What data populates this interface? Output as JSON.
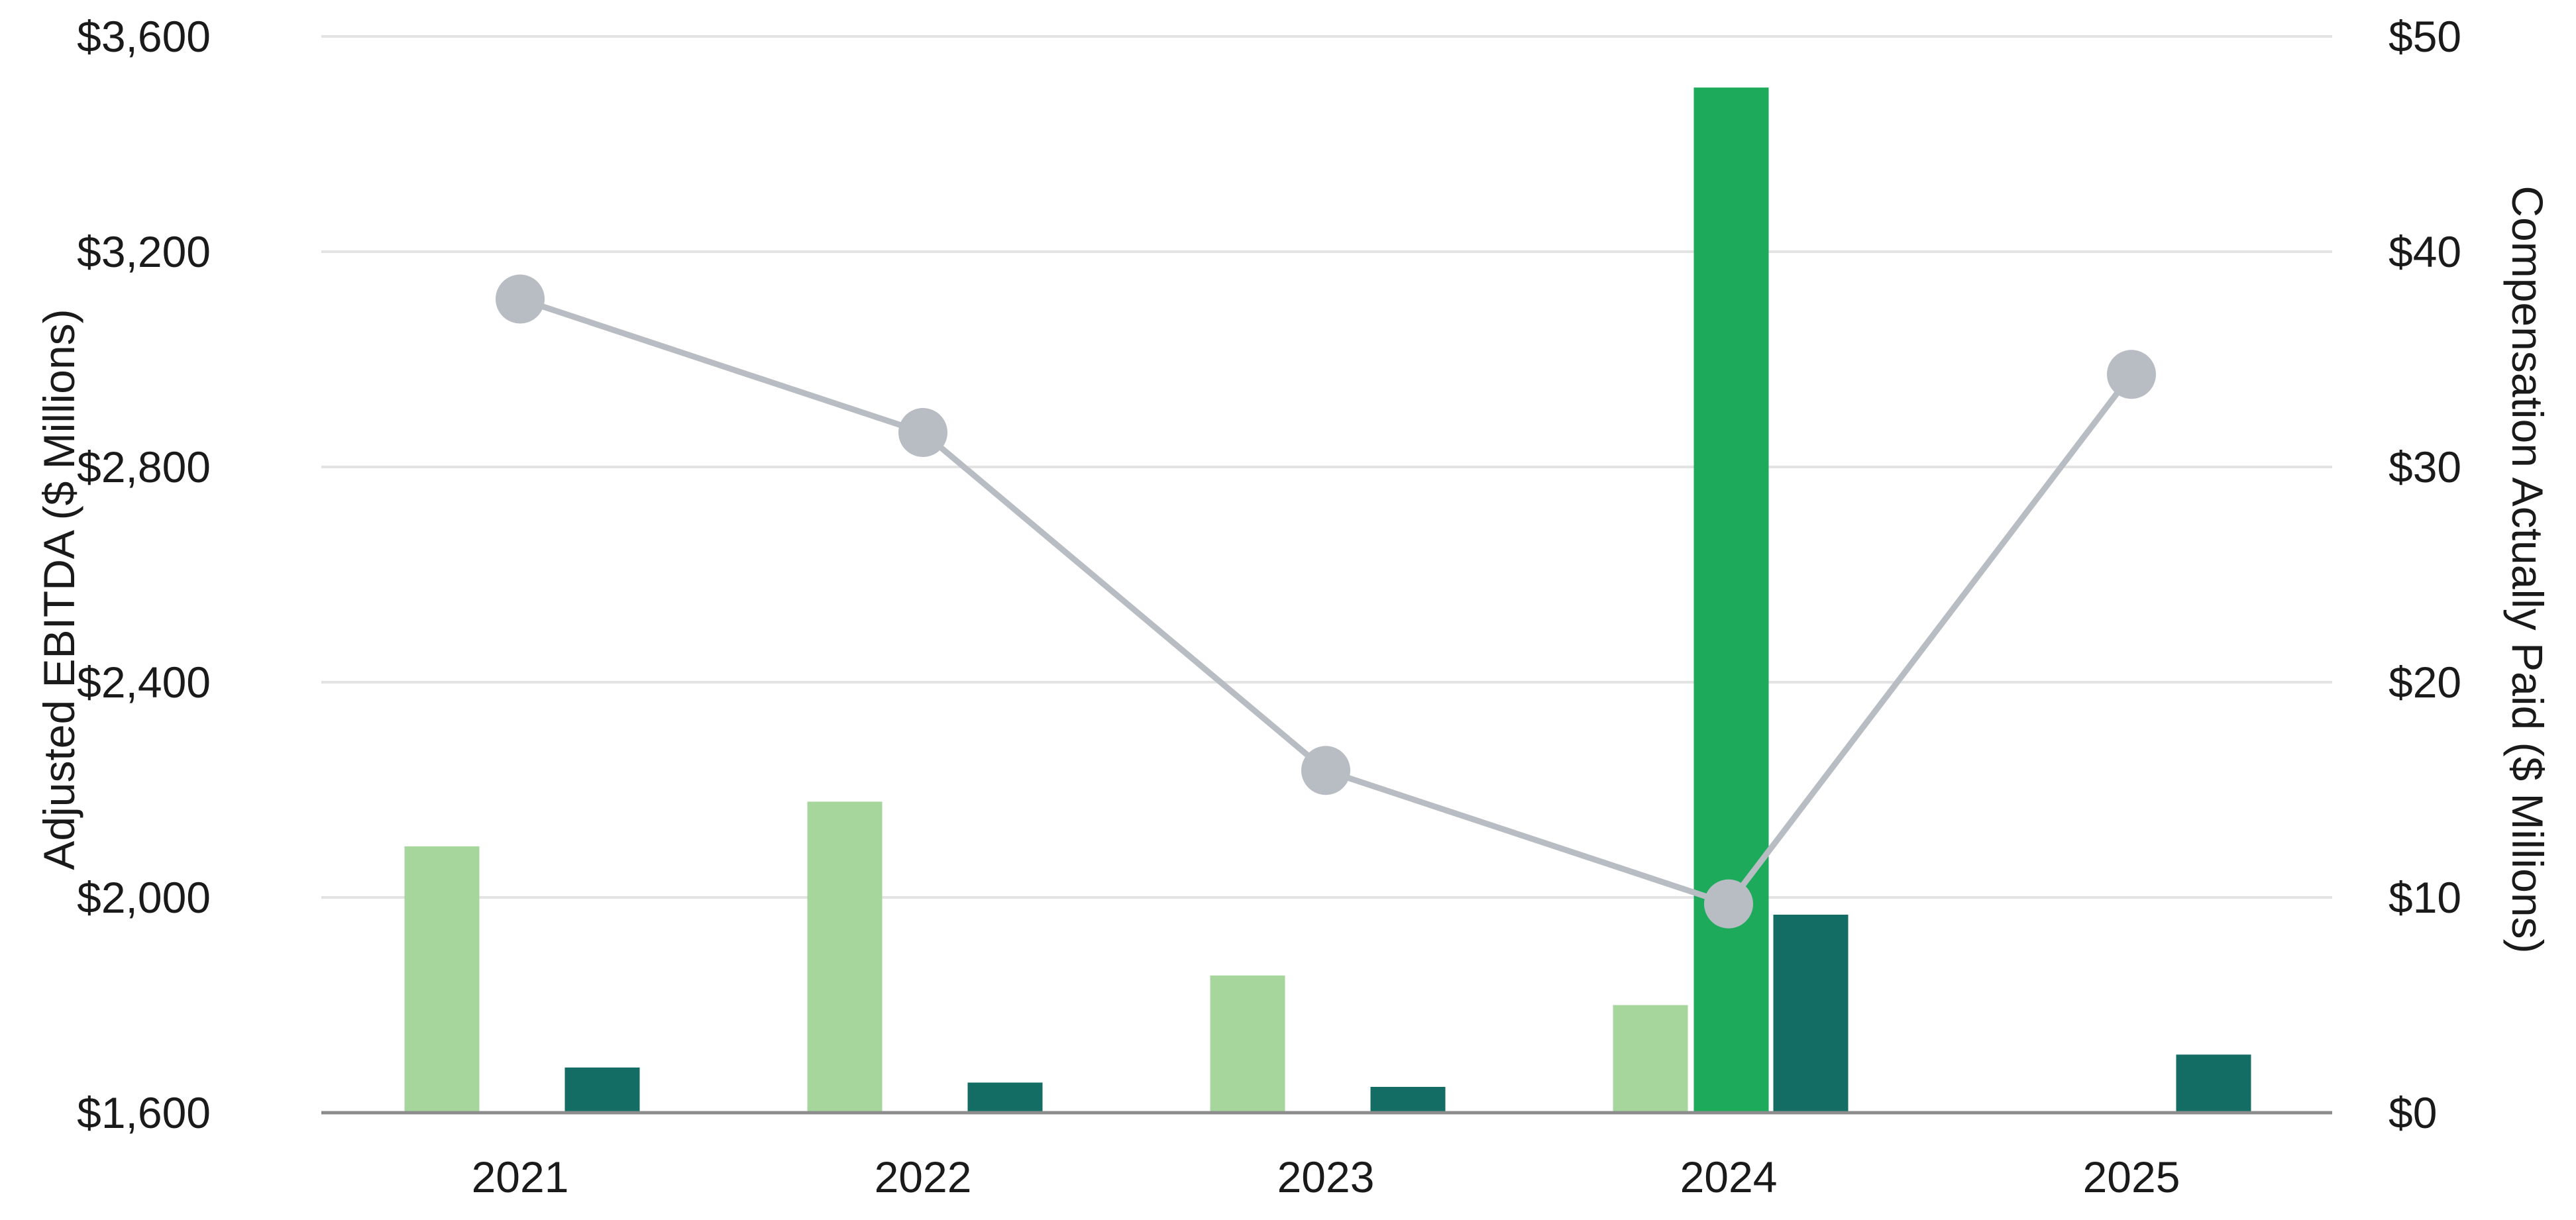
{
  "chart_data": {
    "type": "bar",
    "categories": [
      "2021",
      "2022",
      "2023",
      "2024",
      "2025"
    ],
    "left_axis": {
      "label": "Adjusted EBITDA ($ Millions)",
      "ylim": [
        1600,
        3600
      ],
      "ticks": [
        1600,
        2000,
        2400,
        2800,
        3200,
        3600
      ],
      "tick_labels": [
        "$1,600",
        "$2,000",
        "$2,400",
        "$2,800",
        "$3,200",
        "$3,600"
      ]
    },
    "right_axis": {
      "label": "Compensation Actually Paid  ($ Millions)",
      "ylim": [
        0,
        50
      ],
      "ticks": [
        0,
        10,
        20,
        30,
        40,
        50
      ],
      "tick_labels": [
        "$0",
        "$10",
        "$20",
        "$30",
        "$40",
        "$50"
      ]
    },
    "series": [
      {
        "kind": "bar",
        "axis": "left",
        "slot": 0,
        "color": "#a7d69c",
        "values": [
          2095,
          2178,
          1855,
          1800,
          null
        ]
      },
      {
        "kind": "bar",
        "axis": "left",
        "slot": 1,
        "color": "#1dab5b",
        "values": [
          null,
          null,
          null,
          3505,
          null
        ]
      },
      {
        "kind": "bar",
        "axis": "right",
        "slot": 2,
        "color": "#136d65",
        "values": [
          2.1,
          1.4,
          1.2,
          9.2,
          2.7
        ]
      },
      {
        "kind": "line",
        "axis": "right",
        "color": "#b8bcc3",
        "values": [
          37.8,
          31.6,
          15.9,
          9.7,
          34.3
        ]
      }
    ],
    "grid": true,
    "legend": "none"
  }
}
